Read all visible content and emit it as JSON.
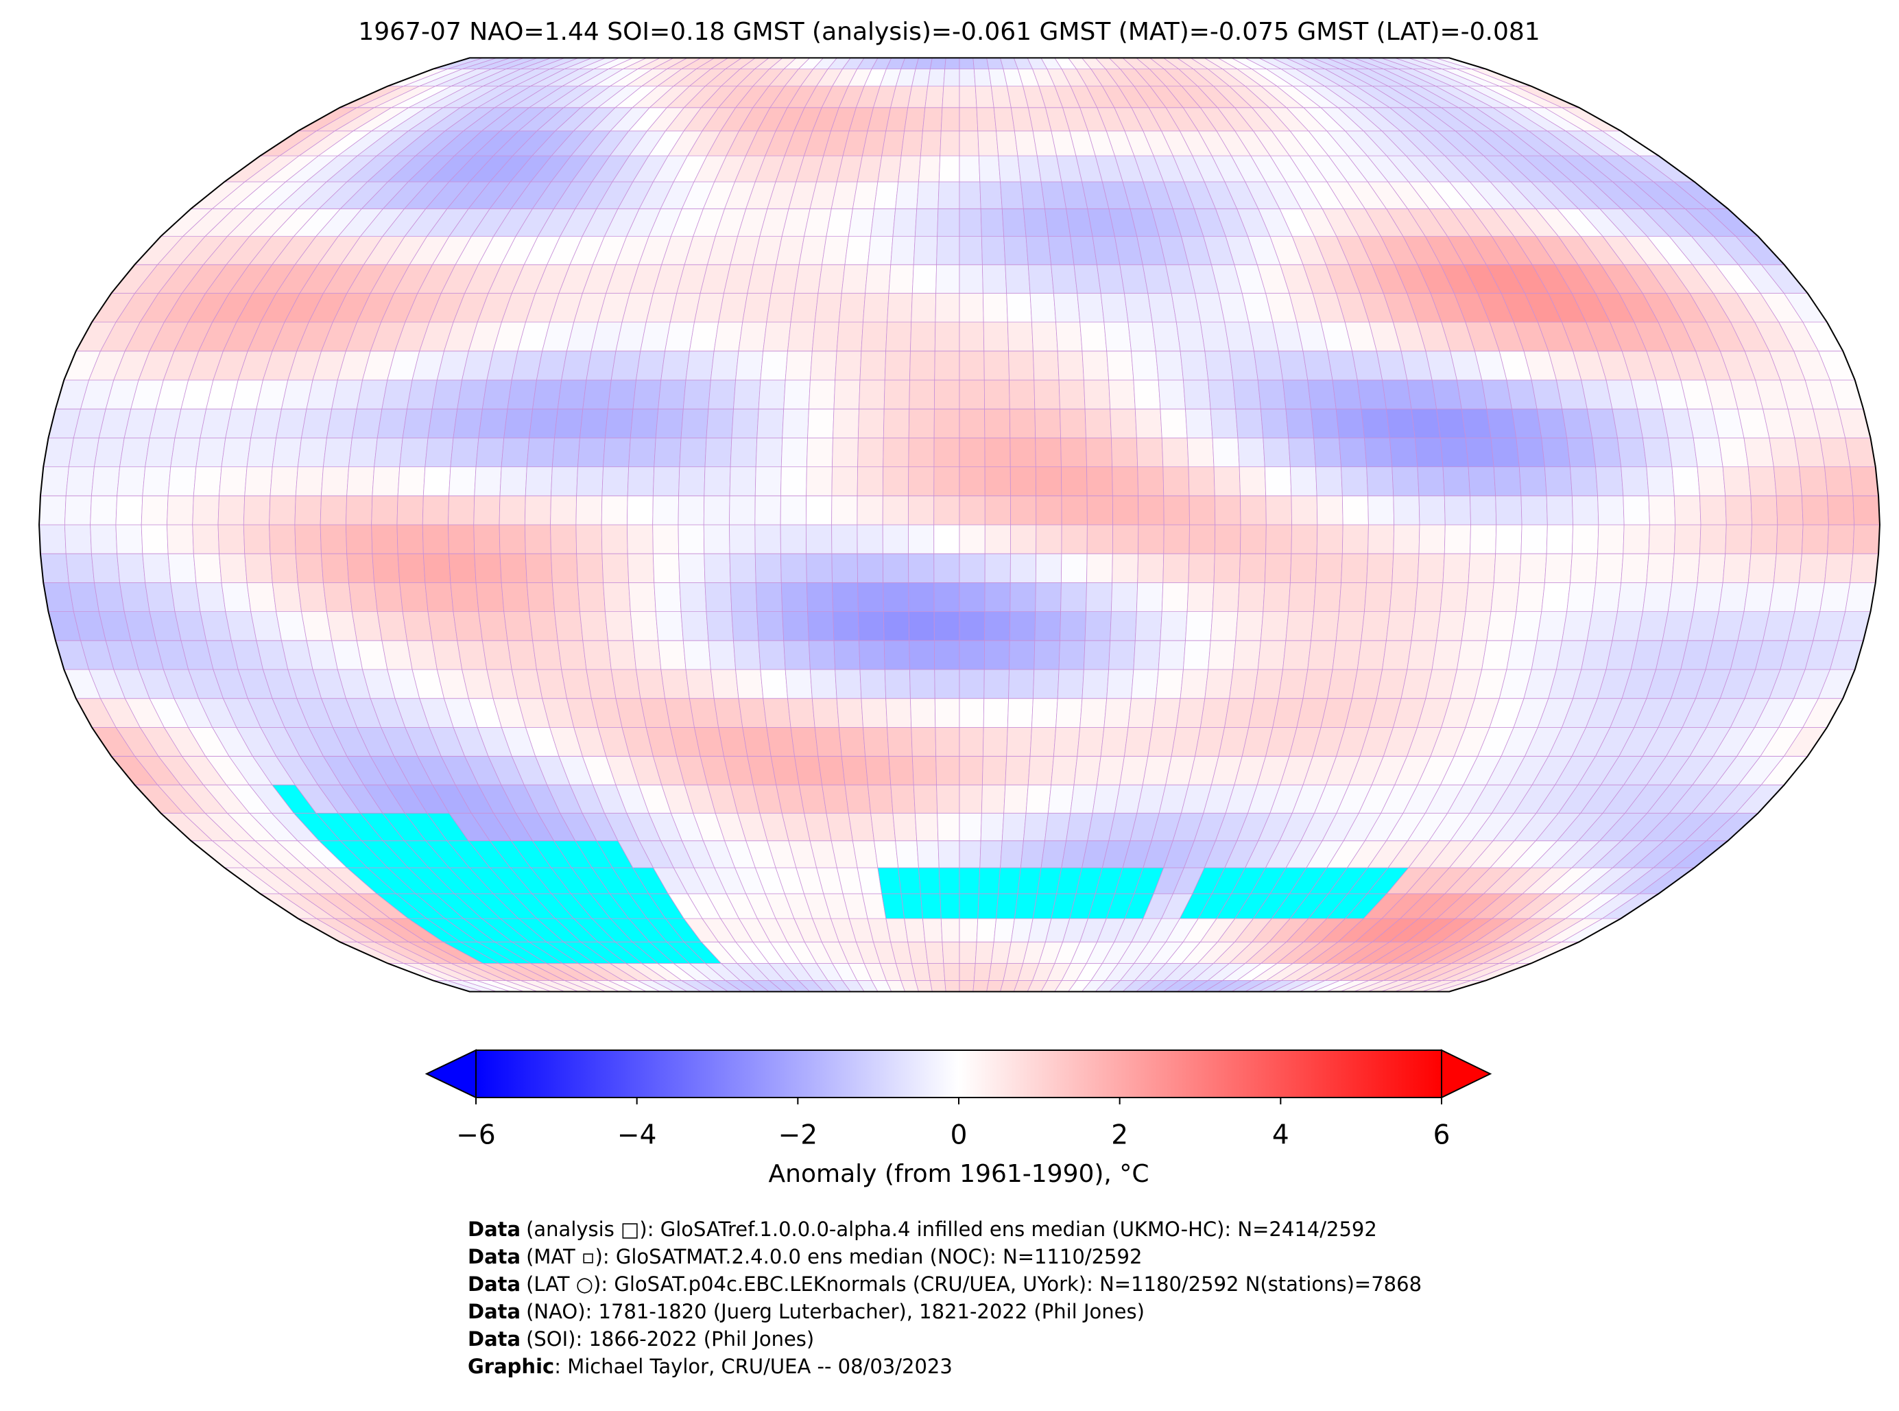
{
  "title": "1967-07 NAO=1.44 SOI=0.18 GMST (analysis)=-0.061 GMST (MAT)=-0.075 GMST (LAT)=-0.081",
  "colorbar": {
    "label": "Anomaly (from 1961-1990), °C",
    "lim": [
      -6,
      6
    ],
    "ticks": [
      {
        "value": -6,
        "label": "−6"
      },
      {
        "value": -4,
        "label": "−4"
      },
      {
        "value": -2,
        "label": "−2"
      },
      0,
      2,
      4,
      6
    ],
    "colormap": [
      "#0000ff",
      "#ffffff",
      "#ff0000"
    ]
  },
  "credits": [
    {
      "label": "Data",
      "text": "(analysis □): GloSATref.1.0.0.0-alpha.4 infilled ens median (UKMO-HC): N=2414/2592"
    },
    {
      "label": "Data",
      "text": "(MAT ▫): GloSATMAT.2.4.0.0 ens median (NOC): N=1110/2592"
    },
    {
      "label": "Data",
      "text": "(LAT ○): GloSAT.p04c.EBC.LEKnormals (CRU/UEA, UYork): N=1180/2592 N(stations)=7868"
    },
    {
      "label": "Data",
      "text": "(NAO): 1781-1820 (Juerg Luterbacher), 1821-2022 (Phil Jones)"
    },
    {
      "label": "Data",
      "text": "(SOI): 1866-2022 (Phil Jones)"
    },
    {
      "label": "Graphic",
      "text": ": Michael Taylor, CRU/UEA -- 08/03/2023"
    }
  ]
}
